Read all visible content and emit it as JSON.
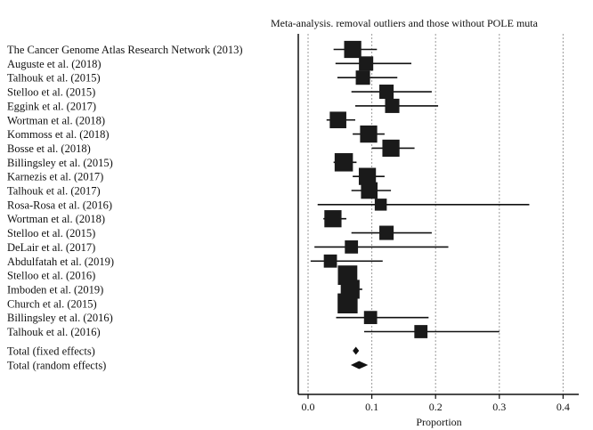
{
  "chart_data": {
    "type": "forest",
    "title": "Meta-analysis. removal outliers and those without POLE muta",
    "xlabel": "Proportion",
    "xlim": [
      -0.02,
      0.42
    ],
    "xticks": [
      "0.0",
      "0.1",
      "0.2",
      "0.3",
      "0.4"
    ],
    "xtick_values": [
      0.0,
      0.1,
      0.2,
      0.3,
      0.4
    ],
    "grid": "dotted vertical",
    "studies": [
      {
        "label": "The Cancer Genome Atlas Research Network (2013)",
        "estimate": 0.07,
        "ci_low": 0.04,
        "ci_high": 0.108,
        "weight": 1.6
      },
      {
        "label": "Auguste et al. (2018)",
        "estimate": 0.091,
        "ci_low": 0.043,
        "ci_high": 0.162,
        "weight": 1.1
      },
      {
        "label": "Talhouk et al. (2015)",
        "estimate": 0.086,
        "ci_low": 0.046,
        "ci_high": 0.14,
        "weight": 1.1
      },
      {
        "label": "Stelloo et al. (2015)",
        "estimate": 0.123,
        "ci_low": 0.068,
        "ci_high": 0.194,
        "weight": 1.1
      },
      {
        "label": "Eggink et al. (2017)",
        "estimate": 0.132,
        "ci_low": 0.074,
        "ci_high": 0.204,
        "weight": 1.1
      },
      {
        "label": "Wortman et al. (2018)",
        "estimate": 0.047,
        "ci_low": 0.029,
        "ci_high": 0.074,
        "weight": 1.5
      },
      {
        "label": "Kommoss et al. (2018)",
        "estimate": 0.095,
        "ci_low": 0.07,
        "ci_high": 0.12,
        "weight": 1.6
      },
      {
        "label": "Bosse et al. (2018)",
        "estimate": 0.13,
        "ci_low": 0.1,
        "ci_high": 0.167,
        "weight": 1.6
      },
      {
        "label": "Billingsley et al. (2015)",
        "estimate": 0.056,
        "ci_low": 0.04,
        "ci_high": 0.076,
        "weight": 1.8
      },
      {
        "label": "Karnezis et al. (2017)",
        "estimate": 0.093,
        "ci_low": 0.07,
        "ci_high": 0.12,
        "weight": 1.6
      },
      {
        "label": "Talhouk et al. (2017)",
        "estimate": 0.096,
        "ci_low": 0.068,
        "ci_high": 0.13,
        "weight": 1.5
      },
      {
        "label": "Rosa-Rosa et al. (2016)",
        "estimate": 0.114,
        "ci_low": 0.015,
        "ci_high": 0.347,
        "weight": 0.7
      },
      {
        "label": "Wortman et al. (2018)",
        "estimate": 0.039,
        "ci_low": 0.024,
        "ci_high": 0.06,
        "weight": 1.6
      },
      {
        "label": "Stelloo et al. (2015)",
        "estimate": 0.123,
        "ci_low": 0.068,
        "ci_high": 0.194,
        "weight": 1.1
      },
      {
        "label": "DeLair et al. (2017)",
        "estimate": 0.068,
        "ci_low": 0.01,
        "ci_high": 0.22,
        "weight": 0.9
      },
      {
        "label": "Abdulfatah et al. (2019)",
        "estimate": 0.035,
        "ci_low": 0.004,
        "ci_high": 0.117,
        "weight": 0.9
      },
      {
        "label": "Stelloo et al. (2016)",
        "estimate": 0.062,
        "ci_low": 0.053,
        "ci_high": 0.072,
        "weight": 2.0
      },
      {
        "label": "Imboden et al. (2019)",
        "estimate": 0.066,
        "ci_low": 0.052,
        "ci_high": 0.085,
        "weight": 1.9
      },
      {
        "label": "Church et al. (2015)",
        "estimate": 0.062,
        "ci_low": 0.052,
        "ci_high": 0.074,
        "weight": 2.1
      },
      {
        "label": "Billingsley et al. (2016)",
        "estimate": 0.098,
        "ci_low": 0.044,
        "ci_high": 0.189,
        "weight": 0.9
      },
      {
        "label": "Talhouk et al. (2016)",
        "estimate": 0.177,
        "ci_low": 0.088,
        "ci_high": 0.3,
        "weight": 0.9
      }
    ],
    "totals": [
      {
        "label": "Total (fixed effects)",
        "estimate": 0.075,
        "ci_low": 0.07,
        "ci_high": 0.08
      },
      {
        "label": "Total (random effects)",
        "estimate": 0.08,
        "ci_low": 0.067,
        "ci_high": 0.094
      }
    ]
  }
}
